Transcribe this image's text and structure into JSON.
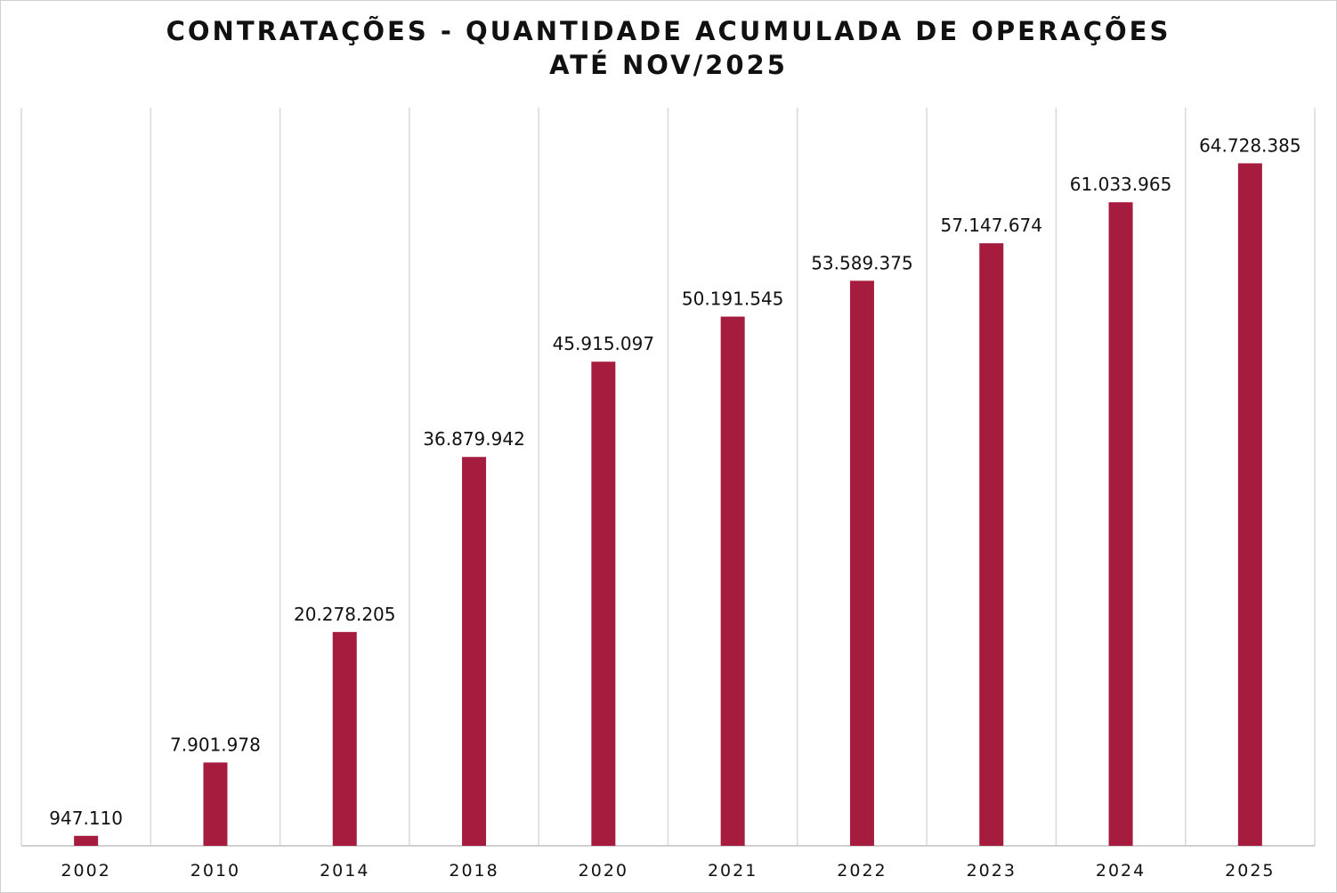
{
  "chart_data": {
    "type": "bar",
    "title": "CONTRATAÇÕES - QUANTIDADE ACUMULADA DE OPERAÇÕES",
    "subtitle": "ATÉ NOV/2025",
    "xlabel": "",
    "ylabel": "",
    "categories": [
      "2002",
      "2010",
      "2014",
      "2018",
      "2020",
      "2021",
      "2022",
      "2023",
      "2024",
      "2025"
    ],
    "values": [
      947110,
      7901978,
      20278205,
      36879942,
      45915097,
      50191545,
      53589375,
      57147674,
      61033965,
      64728385
    ],
    "labels": [
      "947.110",
      "7.901.978",
      "20.278.205",
      "36.879.942",
      "45.915.097",
      "50.191.545",
      "53.589.375",
      "57.147.674",
      "61.033.965",
      "64.728.385"
    ],
    "ylim": [
      0,
      70000000
    ],
    "grid": "vertical",
    "legend": "none",
    "bar_color": "#A51C3F"
  }
}
